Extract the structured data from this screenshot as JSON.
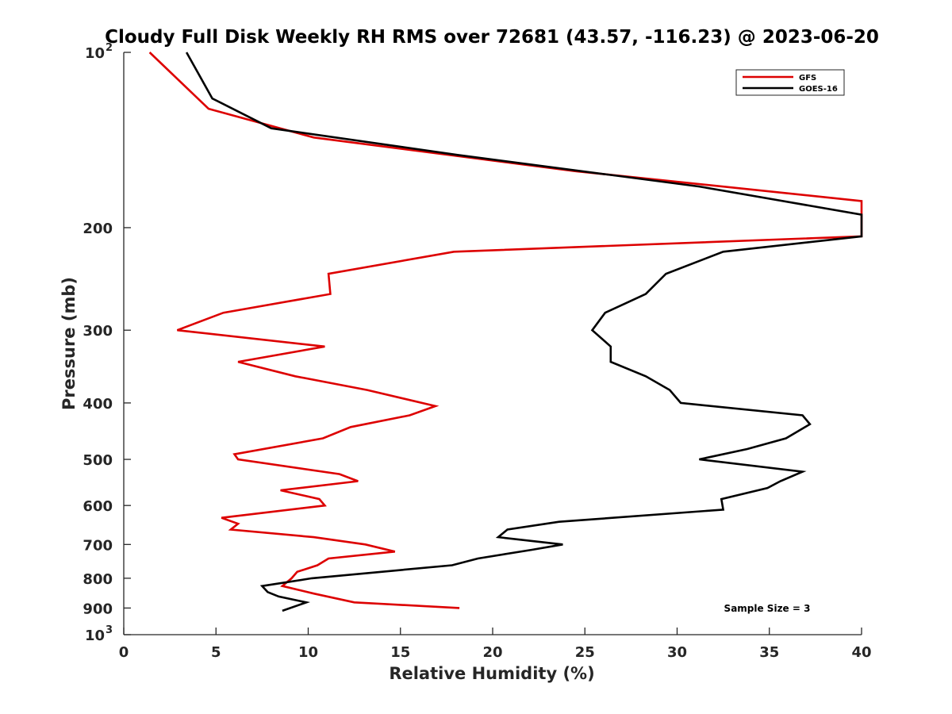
{
  "chart_data": {
    "type": "line",
    "title": "Cloudy Full Disk Weekly RH RMS over 72681 (43.57, -116.23) @ 2023-06-20",
    "xlabel": "Relative Humidity (%)",
    "ylabel": "Pressure (mb)",
    "xlim": [
      0,
      40
    ],
    "ylim": [
      100,
      1000
    ],
    "y_scale": "log",
    "y_reversed": true,
    "grid": false,
    "legend_position": "top-right",
    "x_ticks": [
      "0",
      "5",
      "10",
      "15",
      "20",
      "25",
      "30",
      "35",
      "40"
    ],
    "y_ticks": [
      {
        "value": 100,
        "base": "10",
        "exp": "2"
      },
      {
        "value": 200,
        "label": "200"
      },
      {
        "value": 300,
        "label": "300"
      },
      {
        "value": 400,
        "label": "400"
      },
      {
        "value": 500,
        "label": "500"
      },
      {
        "value": 600,
        "label": "600"
      },
      {
        "value": 700,
        "label": "700"
      },
      {
        "value": 800,
        "label": "800"
      },
      {
        "value": 900,
        "label": "900"
      },
      {
        "value": 1000,
        "base": "10",
        "exp": "3"
      }
    ],
    "annotation": "Sample Size = 3",
    "series": [
      {
        "name": "GFS",
        "color": "#dd0000",
        "points": [
          {
            "x": 18.2,
            "y": 900
          },
          {
            "x": 12.5,
            "y": 880
          },
          {
            "x": 10.3,
            "y": 850
          },
          {
            "x": 8.6,
            "y": 825
          },
          {
            "x": 9.1,
            "y": 800
          },
          {
            "x": 9.4,
            "y": 780
          },
          {
            "x": 10.5,
            "y": 760
          },
          {
            "x": 11.1,
            "y": 740
          },
          {
            "x": 14.7,
            "y": 720
          },
          {
            "x": 13.1,
            "y": 700
          },
          {
            "x": 10.3,
            "y": 680
          },
          {
            "x": 5.8,
            "y": 660
          },
          {
            "x": 6.2,
            "y": 645
          },
          {
            "x": 5.3,
            "y": 630
          },
          {
            "x": 10.9,
            "y": 600
          },
          {
            "x": 10.6,
            "y": 585
          },
          {
            "x": 8.5,
            "y": 565
          },
          {
            "x": 12.7,
            "y": 545
          },
          {
            "x": 11.7,
            "y": 530
          },
          {
            "x": 6.2,
            "y": 500
          },
          {
            "x": 6.0,
            "y": 490
          },
          {
            "x": 10.8,
            "y": 460
          },
          {
            "x": 12.3,
            "y": 440
          },
          {
            "x": 15.5,
            "y": 420
          },
          {
            "x": 16.9,
            "y": 405
          },
          {
            "x": 13.2,
            "y": 380
          },
          {
            "x": 9.3,
            "y": 360
          },
          {
            "x": 6.2,
            "y": 340
          },
          {
            "x": 10.9,
            "y": 320
          },
          {
            "x": 2.9,
            "y": 300
          },
          {
            "x": 5.4,
            "y": 280
          },
          {
            "x": 11.2,
            "y": 260
          },
          {
            "x": 11.1,
            "y": 240
          },
          {
            "x": 17.9,
            "y": 220
          },
          {
            "x": 40.0,
            "y": 207
          },
          {
            "x": 40.0,
            "y": 180
          },
          {
            "x": 24.5,
            "y": 160
          },
          {
            "x": 10.3,
            "y": 140
          },
          {
            "x": 4.6,
            "y": 125
          },
          {
            "x": 1.4,
            "y": 100
          }
        ]
      },
      {
        "name": "GOES-16",
        "color": "#000000",
        "points": [
          {
            "x": 8.6,
            "y": 910
          },
          {
            "x": 9.9,
            "y": 880
          },
          {
            "x": 8.4,
            "y": 860
          },
          {
            "x": 7.8,
            "y": 845
          },
          {
            "x": 7.5,
            "y": 825
          },
          {
            "x": 10.2,
            "y": 800
          },
          {
            "x": 17.8,
            "y": 760
          },
          {
            "x": 19.2,
            "y": 740
          },
          {
            "x": 22.1,
            "y": 715
          },
          {
            "x": 23.8,
            "y": 700
          },
          {
            "x": 20.3,
            "y": 680
          },
          {
            "x": 20.8,
            "y": 660
          },
          {
            "x": 23.6,
            "y": 640
          },
          {
            "x": 32.5,
            "y": 610
          },
          {
            "x": 32.4,
            "y": 585
          },
          {
            "x": 34.9,
            "y": 560
          },
          {
            "x": 35.6,
            "y": 545
          },
          {
            "x": 36.8,
            "y": 525
          },
          {
            "x": 31.2,
            "y": 500
          },
          {
            "x": 33.8,
            "y": 480
          },
          {
            "x": 35.9,
            "y": 460
          },
          {
            "x": 37.2,
            "y": 435
          },
          {
            "x": 36.8,
            "y": 420
          },
          {
            "x": 30.2,
            "y": 400
          },
          {
            "x": 29.6,
            "y": 380
          },
          {
            "x": 28.3,
            "y": 360
          },
          {
            "x": 26.4,
            "y": 340
          },
          {
            "x": 26.4,
            "y": 320
          },
          {
            "x": 25.4,
            "y": 300
          },
          {
            "x": 26.1,
            "y": 280
          },
          {
            "x": 28.3,
            "y": 260
          },
          {
            "x": 29.4,
            "y": 240
          },
          {
            "x": 32.5,
            "y": 220
          },
          {
            "x": 40.0,
            "y": 207
          },
          {
            "x": 40.0,
            "y": 190
          },
          {
            "x": 31.2,
            "y": 170
          },
          {
            "x": 18.1,
            "y": 150
          },
          {
            "x": 8.0,
            "y": 135
          },
          {
            "x": 4.8,
            "y": 120
          },
          {
            "x": 3.4,
            "y": 100
          }
        ]
      }
    ]
  }
}
